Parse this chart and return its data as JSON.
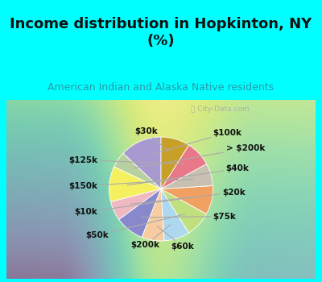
{
  "title": "Income distribution in Hopkinton, NY\n(%)",
  "subtitle": "American Indian and Alaska Native residents",
  "labels": [
    "$100k",
    "> $200k",
    "$40k",
    "$20k",
    "$75k",
    "$60k",
    "$200k",
    "$50k",
    "$10k",
    "$150k",
    "$125k",
    "$30k"
  ],
  "values": [
    13,
    5,
    11,
    6,
    9,
    7,
    8,
    8,
    9,
    7,
    8,
    9
  ],
  "colors": [
    "#a89ad0",
    "#b8d0a0",
    "#f5f060",
    "#f0b8c0",
    "#8888cc",
    "#f8cca0",
    "#add8f0",
    "#c0e080",
    "#f0a060",
    "#c8c0b0",
    "#e87888",
    "#c8a028"
  ],
  "bg_color": "#00ffff",
  "chart_bg": [
    "#cceedd",
    "#e8f8f0"
  ],
  "startangle": 90,
  "label_fontsize": 7.5,
  "title_fontsize": 13,
  "subtitle_fontsize": 9,
  "watermark": "City-Data.com",
  "label_coords": {
    "$100k": [
      0.72,
      0.78,
      "left"
    ],
    "> $200k": [
      0.9,
      0.56,
      "left"
    ],
    "$40k": [
      0.9,
      0.28,
      "left"
    ],
    "$20k": [
      0.85,
      -0.05,
      "left"
    ],
    "$75k": [
      0.72,
      -0.38,
      "left"
    ],
    "$60k": [
      0.3,
      -0.8,
      "center"
    ],
    "$200k": [
      -0.22,
      -0.78,
      "center"
    ],
    "$50k": [
      -0.72,
      -0.64,
      "right"
    ],
    "$10k": [
      -0.88,
      -0.32,
      "right"
    ],
    "$150k": [
      -0.88,
      0.04,
      "right"
    ],
    "$125k": [
      -0.88,
      0.4,
      "right"
    ],
    "$30k": [
      -0.2,
      0.8,
      "center"
    ]
  }
}
